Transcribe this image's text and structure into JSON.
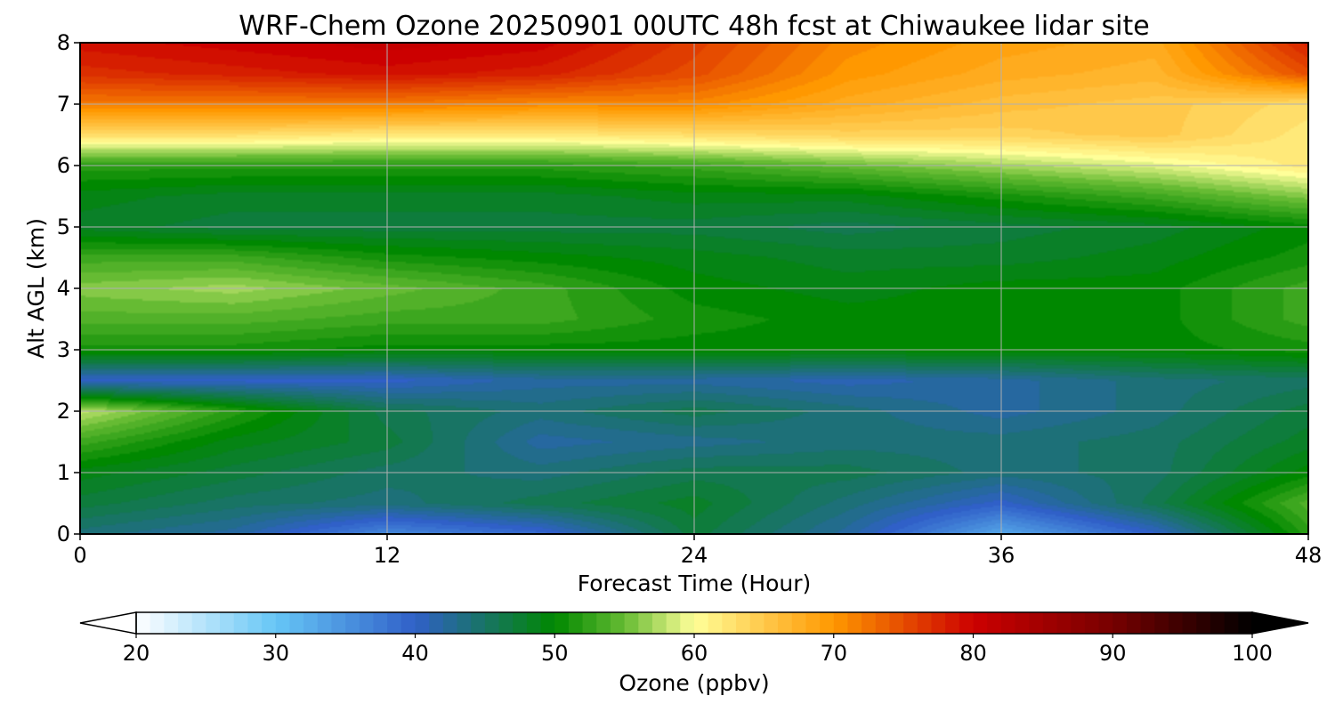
{
  "chart_data": {
    "type": "heatmap",
    "title": "WRF-Chem Ozone  20250901 00UTC 48h fcst at Chiwaukee lidar site",
    "xlabel": "Forecast Time (Hour)",
    "ylabel": "Alt AGL (km)",
    "xlim": [
      0,
      48
    ],
    "ylim": [
      0,
      8
    ],
    "xticks": [
      "0",
      "12",
      "24",
      "36",
      "48"
    ],
    "yticks": [
      "0",
      "1",
      "2",
      "3",
      "4",
      "5",
      "6",
      "7",
      "8"
    ],
    "grid": true,
    "colorbar": {
      "label": "Ozone  (ppbv)",
      "range": [
        20,
        100
      ],
      "ticks": [
        "20",
        "30",
        "40",
        "50",
        "60",
        "70",
        "80",
        "90",
        "100"
      ],
      "extend": "both",
      "stops": [
        {
          "v": 20,
          "c": "#ffffff"
        },
        {
          "v": 30,
          "c": "#66c6f6"
        },
        {
          "v": 40,
          "c": "#3060c8"
        },
        {
          "v": 50,
          "c": "#008800"
        },
        {
          "v": 55,
          "c": "#66bb33"
        },
        {
          "v": 60,
          "c": "#ffff99"
        },
        {
          "v": 65,
          "c": "#ffc84a"
        },
        {
          "v": 70,
          "c": "#ff9800"
        },
        {
          "v": 80,
          "c": "#cc0000"
        },
        {
          "v": 90,
          "c": "#770000"
        },
        {
          "v": 100,
          "c": "#000000"
        }
      ]
    },
    "x": [
      0,
      6,
      12,
      18,
      24,
      30,
      36,
      42,
      48
    ],
    "y": [
      0,
      0.5,
      1,
      1.5,
      2,
      2.5,
      3,
      3.5,
      4,
      4.5,
      5,
      5.5,
      6,
      6.5,
      7,
      7.5,
      8
    ],
    "z": [
      [
        44,
        42,
        36,
        39,
        47,
        42,
        33,
        40,
        52
      ],
      [
        47,
        45,
        44,
        46,
        48,
        44,
        40,
        46,
        54
      ],
      [
        49,
        47,
        45,
        44,
        46,
        46,
        44,
        45,
        50
      ],
      [
        53,
        49,
        47,
        42,
        43,
        44,
        44,
        45,
        48
      ],
      [
        58,
        52,
        46,
        44,
        46,
        44,
        42,
        44,
        47
      ],
      [
        40,
        40,
        40,
        42,
        42,
        41,
        42,
        44,
        45
      ],
      [
        51,
        51,
        50,
        50,
        50,
        50,
        50,
        50,
        51
      ],
      [
        54,
        54,
        53,
        53,
        51,
        50,
        50,
        50,
        53
      ],
      [
        56,
        57,
        55,
        53,
        50,
        49,
        50,
        50,
        53
      ],
      [
        53,
        53,
        51,
        50,
        49,
        48,
        48,
        49,
        51
      ],
      [
        48,
        47,
        47,
        47,
        47,
        46,
        47,
        48,
        50
      ],
      [
        49,
        48,
        48,
        48,
        49,
        49,
        51,
        53,
        56
      ],
      [
        52,
        52,
        52,
        52,
        53,
        55,
        57,
        59,
        62
      ],
      [
        63,
        63,
        62,
        62,
        63,
        64,
        64,
        65,
        62
      ],
      [
        72,
        72,
        72,
        71,
        71,
        68,
        66,
        65,
        63
      ],
      [
        77,
        78,
        79,
        78,
        75,
        70,
        68,
        67,
        75
      ],
      [
        79,
        80,
        81,
        80,
        76,
        71,
        69,
        68,
        78
      ]
    ]
  }
}
